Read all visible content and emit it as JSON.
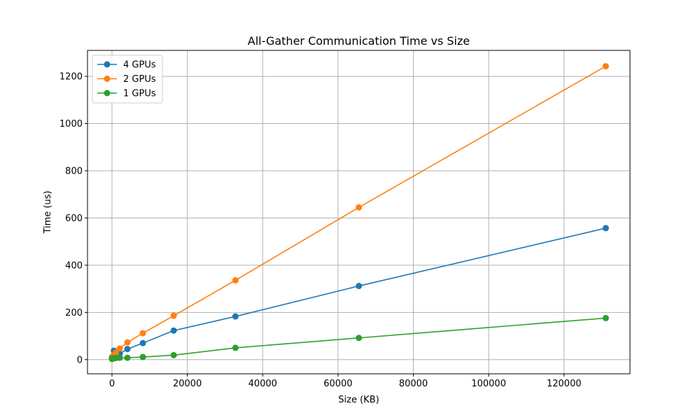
{
  "chart_data": {
    "type": "line",
    "title": "All-Gather Communication Time vs Size",
    "xlabel": "Size (KB)",
    "ylabel": "Time (us)",
    "xlim": [
      -6500,
      137500
    ],
    "ylim": [
      -60,
      1310
    ],
    "xticks": [
      0,
      20000,
      40000,
      60000,
      80000,
      100000,
      120000
    ],
    "xtick_labels": [
      "0",
      "20000",
      "40000",
      "60000",
      "80000",
      "100000",
      "120000"
    ],
    "yticks": [
      0,
      200,
      400,
      600,
      800,
      1000,
      1200
    ],
    "ytick_labels": [
      "0",
      "200",
      "400",
      "600",
      "800",
      "1000",
      "1200"
    ],
    "grid": true,
    "legend_position": "top-left",
    "series": [
      {
        "name": "4 GPUs",
        "color": "#1f77b4",
        "x": [
          1,
          2,
          4,
          8,
          16,
          32,
          64,
          128,
          256,
          512,
          1024,
          2048,
          4096,
          8192,
          16384,
          32768,
          65536,
          131072
        ],
        "y": [
          8,
          9,
          9,
          10,
          10,
          11,
          12,
          13,
          15,
          38,
          20,
          25,
          45,
          70,
          123,
          183,
          312,
          557
        ]
      },
      {
        "name": "2 GPUs",
        "color": "#ff7f0e",
        "x": [
          1,
          2,
          4,
          8,
          16,
          32,
          64,
          128,
          256,
          512,
          1024,
          2048,
          4096,
          8192,
          16384,
          32768,
          65536,
          131072
        ],
        "y": [
          7,
          7,
          7,
          8,
          8,
          9,
          10,
          12,
          15,
          20,
          30,
          47,
          73,
          112,
          186,
          336,
          645,
          1243
        ]
      },
      {
        "name": "1 GPUs",
        "color": "#2ca02c",
        "x": [
          1,
          2,
          4,
          8,
          16,
          32,
          64,
          128,
          256,
          512,
          1024,
          2048,
          4096,
          8192,
          16384,
          32768,
          65536,
          131072
        ],
        "y": [
          3,
          3,
          3,
          4,
          4,
          4,
          5,
          5,
          6,
          6,
          7,
          8,
          8,
          11,
          19,
          50,
          92,
          176
        ]
      }
    ]
  }
}
